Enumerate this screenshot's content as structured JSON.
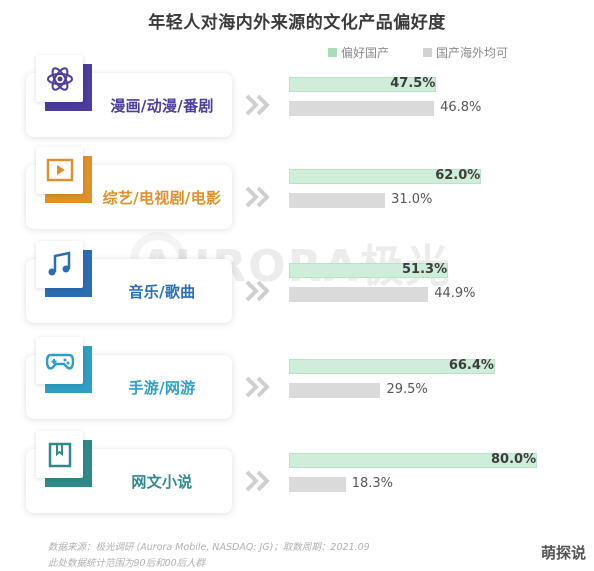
{
  "chart_data": {
    "type": "bar",
    "title": "年轻人对海内外来源的文化产品偏好度",
    "categories": [
      "漫画/动漫/番剧",
      "综艺/电视剧/电影",
      "音乐/歌曲",
      "手游/网游",
      "网文小说"
    ],
    "category_colors": [
      "#4b3c9e",
      "#e0902a",
      "#2a6db5",
      "#2e9fc4",
      "#2e8a8a"
    ],
    "icons": [
      "atom-icon",
      "video-play-icon",
      "music-note-icon",
      "gamepad-icon",
      "book-icon"
    ],
    "series": [
      {
        "name": "偏好国产",
        "values": [
          47.5,
          62.0,
          51.3,
          66.4,
          80.0
        ],
        "labels": [
          "47.5%",
          "62.0%",
          "51.3%",
          "66.4%",
          "80.0%"
        ],
        "color": "#cfeeda"
      },
      {
        "name": "国产海外均可",
        "values": [
          46.8,
          31.0,
          44.9,
          29.5,
          18.3
        ],
        "labels": [
          "46.8%",
          "31.0%",
          "44.9%",
          "29.5%",
          "18.3%"
        ],
        "color": "#dadada"
      }
    ],
    "xlim": [
      0,
      100
    ],
    "legend": "top-right",
    "grid": false
  },
  "watermark": "AURORA极光",
  "footnotes": [
    "数据来源：极光调研 (Aurora Mobile, NASDAQ: JG)；取数周期：2021.09",
    "此处数据统计范围为90后和00后人群"
  ],
  "corner_mark": "萌探说"
}
